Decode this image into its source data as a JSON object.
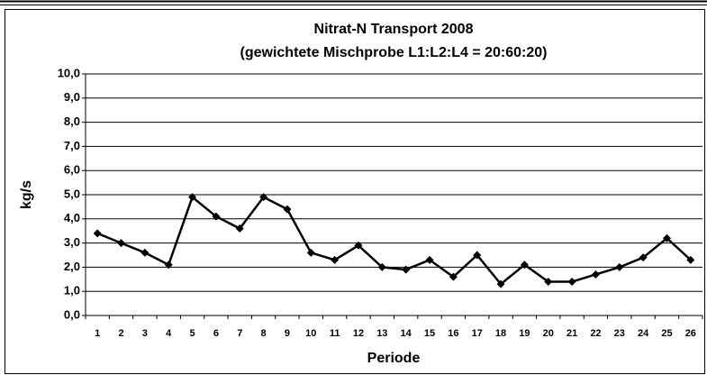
{
  "chart_data": {
    "type": "line",
    "title": "Nitrat-N Transport 2008",
    "subtitle": "(gewichtete Mischprobe L1:L2:L4 = 20:60:20)",
    "x_label": "Periode",
    "y_label": "kg/s",
    "categories": [
      "1",
      "2",
      "3",
      "4",
      "5",
      "6",
      "7",
      "8",
      "9",
      "10",
      "11",
      "12",
      "13",
      "14",
      "15",
      "16",
      "17",
      "18",
      "19",
      "20",
      "21",
      "22",
      "23",
      "24",
      "25",
      "26"
    ],
    "values": [
      3.4,
      3.0,
      2.6,
      2.1,
      4.9,
      4.1,
      3.6,
      4.9,
      4.4,
      2.6,
      2.3,
      2.9,
      2.0,
      1.9,
      2.3,
      1.6,
      2.5,
      1.3,
      2.1,
      1.4,
      1.4,
      1.7,
      2.0,
      2.4,
      3.2,
      2.3
    ],
    "color": "#000000",
    "ylim": [
      0,
      10
    ],
    "yticks": [
      {
        "value": 0,
        "label": "0,0"
      },
      {
        "value": 1,
        "label": "1,0"
      },
      {
        "value": 2,
        "label": "2,0"
      },
      {
        "value": 3,
        "label": "3,0"
      },
      {
        "value": 4,
        "label": "4,0"
      },
      {
        "value": 5,
        "label": "5,0"
      },
      {
        "value": 6,
        "label": "6,0"
      },
      {
        "value": 7,
        "label": "7,0"
      },
      {
        "value": 8,
        "label": "8,0"
      },
      {
        "value": 9,
        "label": "9,0"
      },
      {
        "value": 10,
        "label": "10,0"
      }
    ],
    "grid": true
  }
}
